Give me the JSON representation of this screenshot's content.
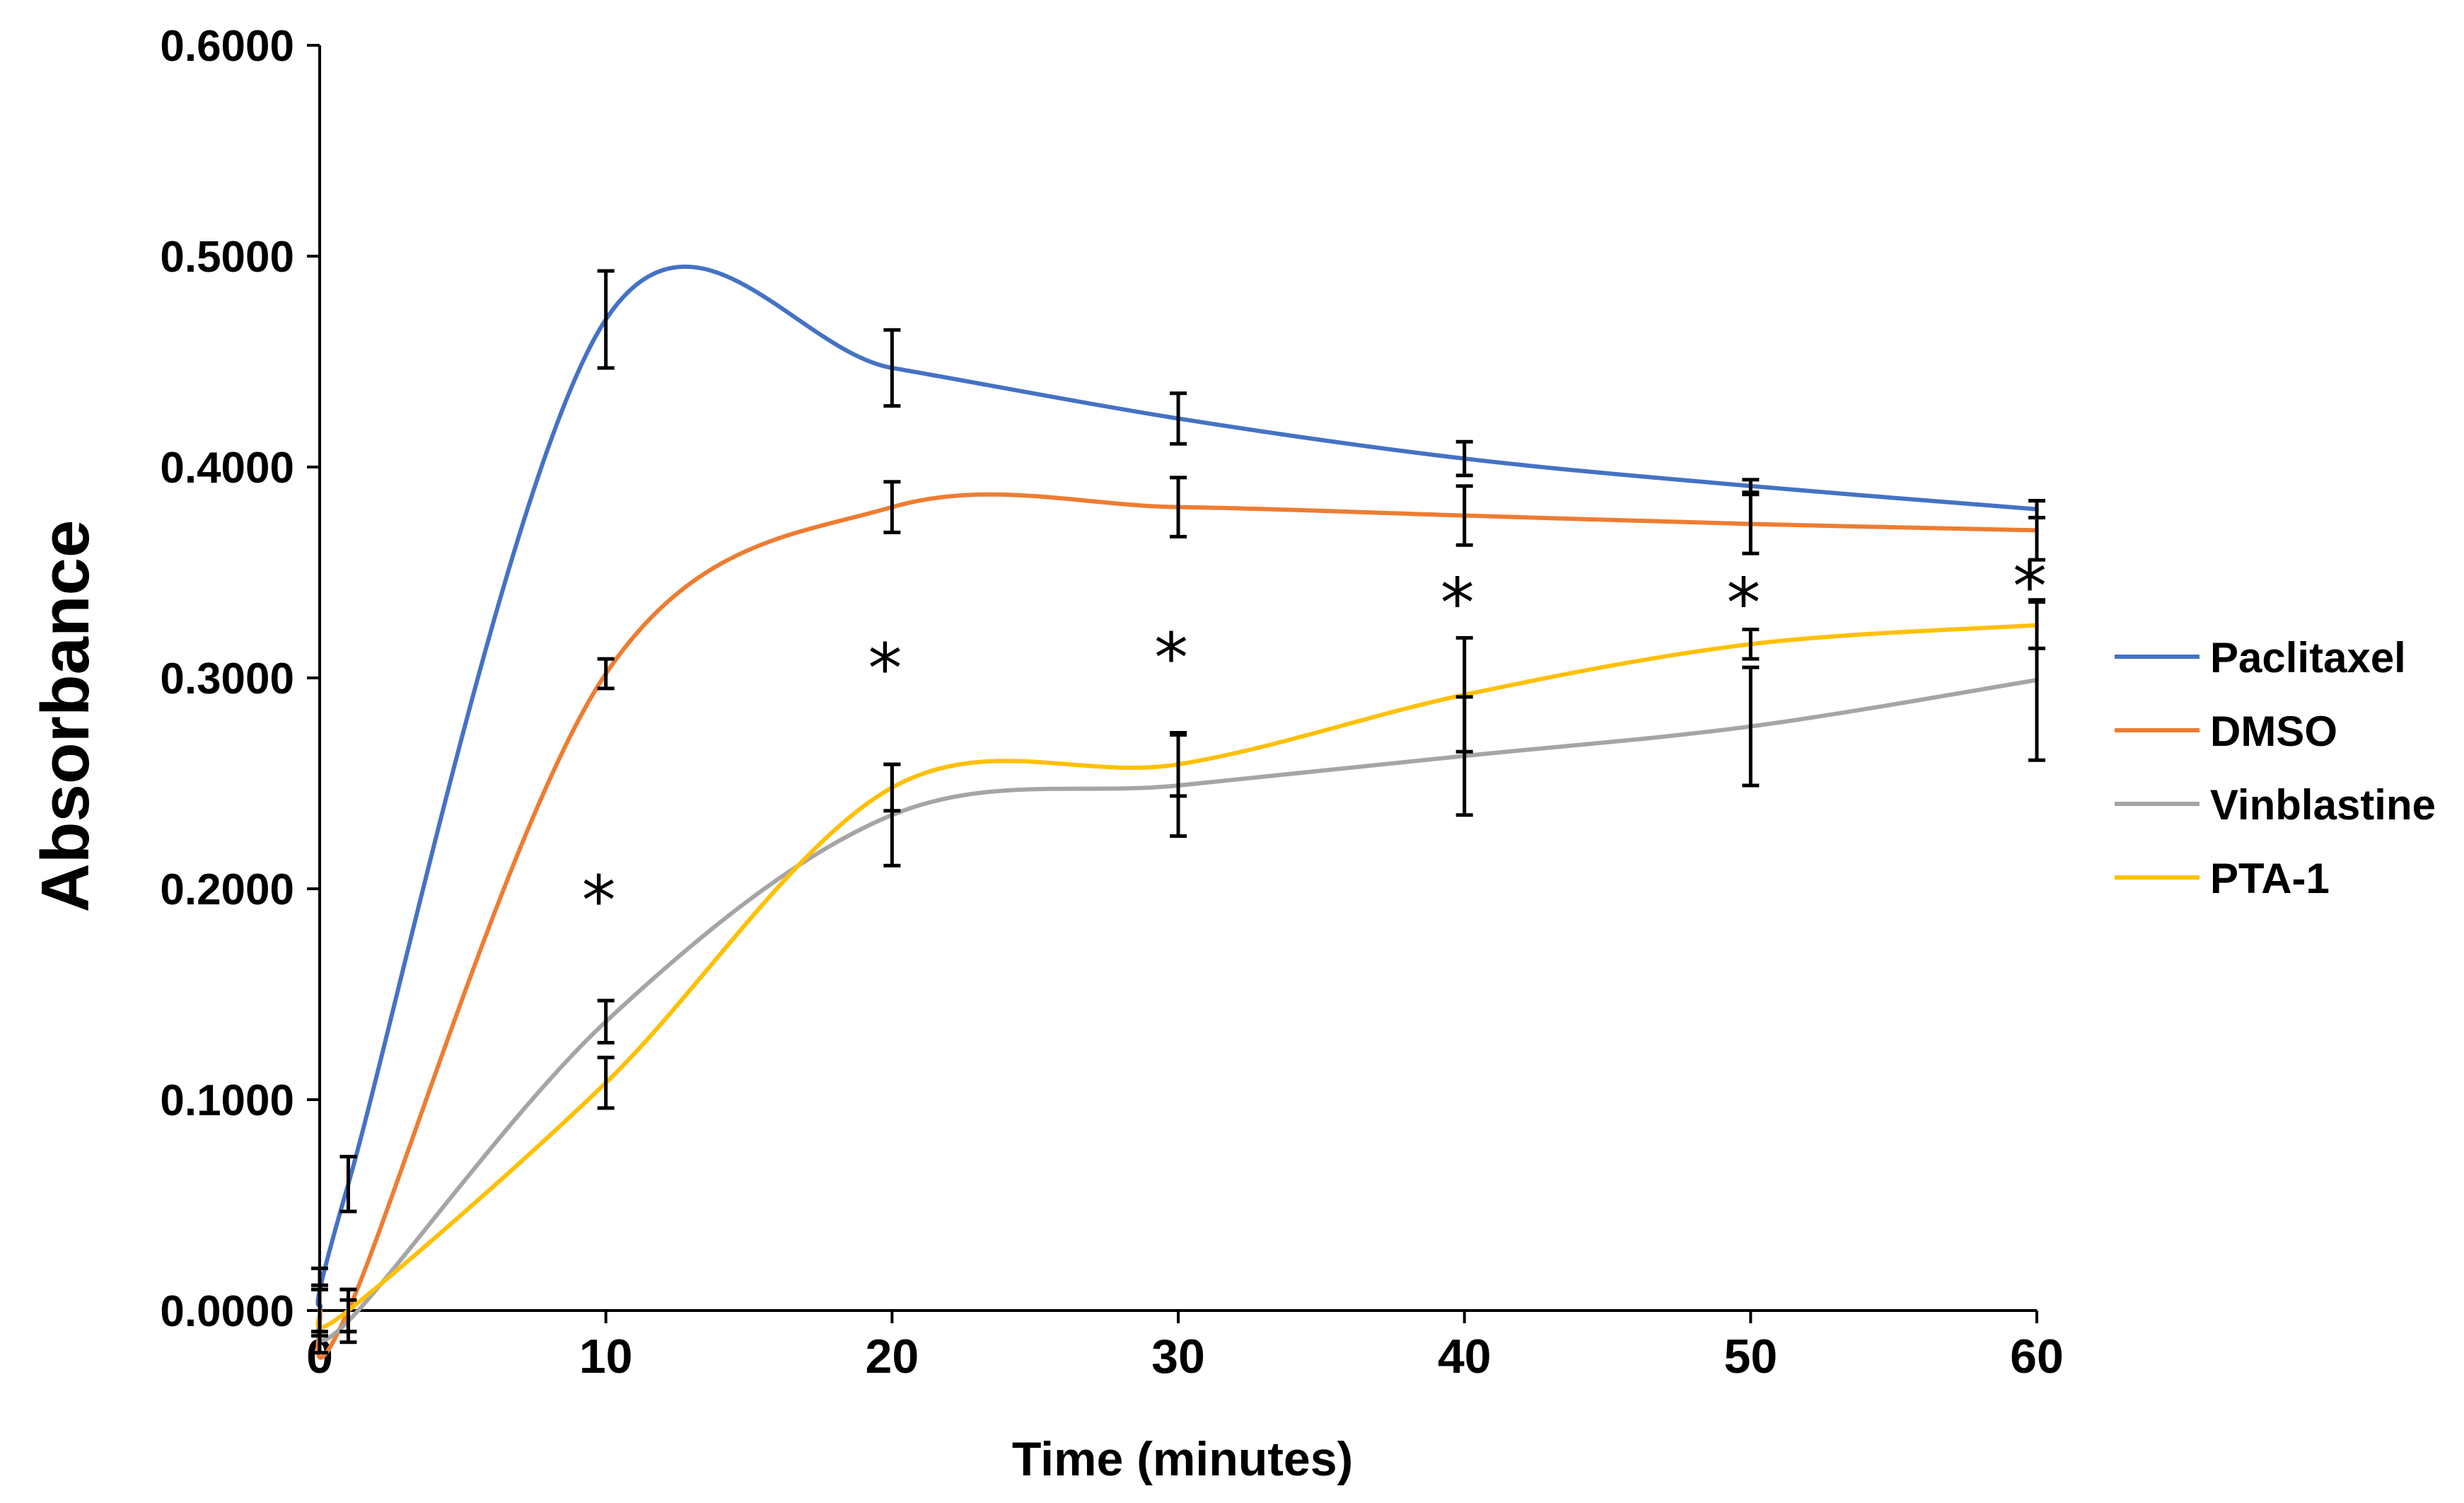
{
  "chart_data": {
    "type": "line",
    "title": "",
    "xlabel": "Time (minutes)",
    "ylabel": "Absorbance",
    "xlim": [
      0,
      60
    ],
    "ylim": [
      0,
      0.6
    ],
    "x_ticks": [
      0,
      10,
      20,
      30,
      40,
      50,
      60
    ],
    "x_tick_labels": [
      "0",
      "10",
      "20",
      "30",
      "40",
      "50",
      "60"
    ],
    "y_ticks": [
      0,
      0.1,
      0.2,
      0.3,
      0.4,
      0.5,
      0.6
    ],
    "y_tick_labels": [
      "0.0000",
      "0.1000",
      "0.2000",
      "0.3000",
      "0.4000",
      "0.5000",
      "0.6000"
    ],
    "grid": false,
    "legend_position": "right",
    "x": [
      0,
      1,
      10,
      20,
      30,
      40,
      50,
      60
    ],
    "series": [
      {
        "name": "Paclitaxel",
        "color": "#4472C4",
        "values": [
          0.0,
          0.06,
          0.47,
          0.447,
          0.423,
          0.404,
          0.391,
          0.38
        ],
        "errors": [
          0.012,
          0.013,
          0.023,
          0.018,
          0.012,
          0.008,
          0.003,
          0.004
        ]
      },
      {
        "name": "DMSO",
        "color": "#ED7D31",
        "values": [
          0.0,
          0.0,
          0.302,
          0.381,
          0.381,
          0.377,
          0.373,
          0.37
        ],
        "errors": [
          0.01,
          0.01,
          0.007,
          0.012,
          0.014,
          0.014,
          0.014,
          0.014
        ]
      },
      {
        "name": "Vinblastine",
        "color": "#A5A5A5",
        "values": [
          0.0,
          -0.005,
          0.137,
          0.235,
          0.249,
          0.263,
          0.277,
          0.299
        ],
        "errors": [
          0.02,
          0.01,
          0.01,
          0.024,
          0.024,
          0.028,
          0.028,
          0.038
        ]
      },
      {
        "name": "PTA-1",
        "color": "#FFC000",
        "values": [
          0.0,
          0.0,
          0.108,
          0.248,
          0.259,
          0.292,
          0.316,
          0.325
        ],
        "errors": [
          0.01,
          0.01,
          0.012,
          0.011,
          0.015,
          0.027,
          0.007,
          0.011
        ]
      }
    ],
    "annotations": [
      {
        "text": "*",
        "x": 10,
        "y": 0.196
      },
      {
        "text": "*",
        "x": 20,
        "y": 0.306
      },
      {
        "text": "*",
        "x": 30,
        "y": 0.311
      },
      {
        "text": "*",
        "x": 40,
        "y": 0.337
      },
      {
        "text": "*",
        "x": 50,
        "y": 0.337
      },
      {
        "text": "*",
        "x": 60,
        "y": 0.345
      }
    ]
  }
}
